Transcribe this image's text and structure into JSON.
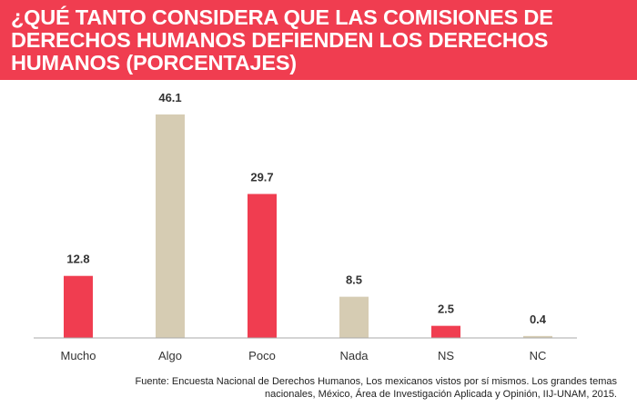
{
  "colors": {
    "banner": "#f03d50",
    "highlight": "#f03d50",
    "neutral": "#d6ccb3",
    "axis": "#aaaaaa"
  },
  "chart_data": {
    "type": "bar",
    "title": "¿QUÉ TANTO CONSIDERA QUE LAS COMISIONES DE DERECHOS HUMANOS DEFIENDEN LOS DERECHOS HUMANOS (PORCENTAJES)",
    "categories": [
      "Mucho",
      "Algo",
      "Poco",
      "Nada",
      "NS",
      "NC"
    ],
    "values": [
      12.8,
      46.1,
      29.7,
      8.5,
      2.5,
      0.4
    ],
    "value_labels": [
      "12.8",
      "46.1",
      "29.7",
      "8.5",
      "2.5",
      "0.4"
    ],
    "bar_colors": [
      "#f03d50",
      "#d6ccb3",
      "#f03d50",
      "#d6ccb3",
      "#f03d50",
      "#d6ccb3"
    ],
    "ylim": [
      0,
      46.1
    ],
    "grid": false,
    "legend": "none"
  },
  "source_note": "Fuente: Encuesta Nacional de Derechos Humanos, Los mexicanos vistos por sí mismos. Los grandes temas nacionales, México, Área de Investigación Aplicada y Opinión, IIJ-UNAM, 2015."
}
